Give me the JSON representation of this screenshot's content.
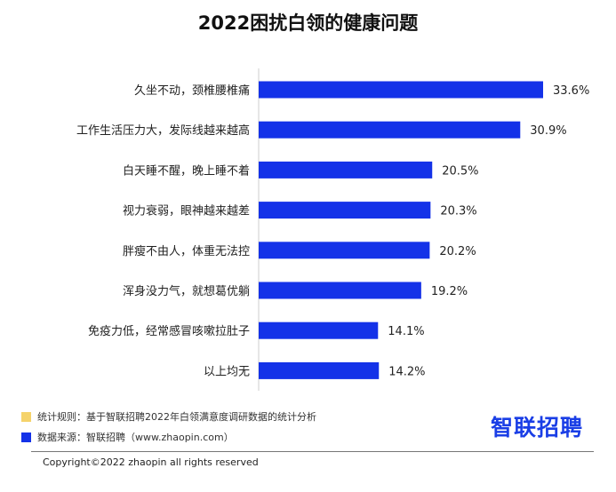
{
  "colors": {
    "bar": "#1432e8",
    "rule_swatch": "#f5d36b",
    "source_swatch": "#1432e8",
    "brand": "#1a3ee6"
  },
  "chart_data": {
    "type": "bar",
    "orientation": "horizontal",
    "title": "2022困扰白领的健康问题",
    "categories": [
      "久坐不动，颈椎腰椎痛",
      "工作生活压力大，发际线越来越高",
      "白天睡不醒，晚上睡不着",
      "视力衰弱，眼神越来越差",
      "胖瘦不由人，体重无法控",
      "浑身没力气，就想葛优躺",
      "免疫力低，经常感冒咳嗽拉肚子",
      "以上均无"
    ],
    "values": [
      33.6,
      30.9,
      20.5,
      20.3,
      20.2,
      19.2,
      14.1,
      14.2
    ],
    "value_labels": [
      "33.6%",
      "30.9%",
      "20.5%",
      "20.3%",
      "20.2%",
      "19.2%",
      "14.1%",
      "14.2%"
    ],
    "xlim": [
      0,
      36
    ],
    "unit": "%"
  },
  "footer": {
    "rule_text": "统计规则：基于智联招聘2022年白领满意度调研数据的统计分析",
    "source_text": "数据来源：智联招聘（www.zhaopin.com）",
    "brand": "智联招聘",
    "copyright": "Copyright©2022 zhaopin all rights reserved"
  }
}
